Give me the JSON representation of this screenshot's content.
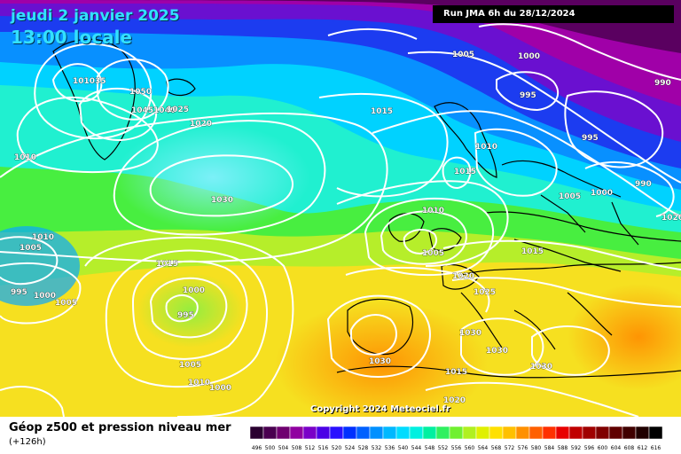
{
  "header": {
    "date": "jeudi 2 janvier 2025",
    "time": "13:00 locale",
    "run": "Run JMA 6h du 28/12/2024"
  },
  "footer": {
    "title": "Géop z500 et pression niveau mer",
    "lead": "(+126h)",
    "copyright": "Copyright 2024 Meteociel.fr"
  },
  "legend": {
    "values": [
      "496",
      "500",
      "504",
      "508",
      "512",
      "516",
      "520",
      "524",
      "528",
      "532",
      "536",
      "540",
      "544",
      "548",
      "552",
      "556",
      "560",
      "564",
      "568",
      "572",
      "576",
      "580",
      "584",
      "588",
      "592",
      "596",
      "600",
      "604",
      "608",
      "612",
      "616"
    ],
    "colors": [
      "#2a0030",
      "#4a0050",
      "#700070",
      "#9000a0",
      "#7a00c8",
      "#4b00e6",
      "#2a10ff",
      "#0030ff",
      "#0060ff",
      "#0090ff",
      "#00b8ff",
      "#00dcff",
      "#00f0e0",
      "#00f0a0",
      "#30f060",
      "#70f030",
      "#b0f020",
      "#e0f000",
      "#ffe000",
      "#ffc000",
      "#ff9000",
      "#ff6000",
      "#ff3000",
      "#e80000",
      "#c00000",
      "#a00000",
      "#800000",
      "#600000",
      "#400000",
      "#200000",
      "#000000"
    ]
  },
  "pressure_labels": [
    "101035",
    "1050",
    "10451040",
    "1025",
    "1020",
    "1010",
    "1010",
    "1030",
    "1015",
    "1015",
    "1000",
    "995",
    "1005",
    "1000",
    "995",
    "1005",
    "1010",
    "1005",
    "1030",
    "1020",
    "1025",
    "1030",
    "1030",
    "1020",
    "1015",
    "1010",
    "1005",
    "1000",
    "995",
    "1015",
    "1010",
    "1015",
    "1005",
    "1000",
    "990",
    "990",
    "995",
    "1000",
    "1005",
    "1020",
    "1030"
  ]
}
